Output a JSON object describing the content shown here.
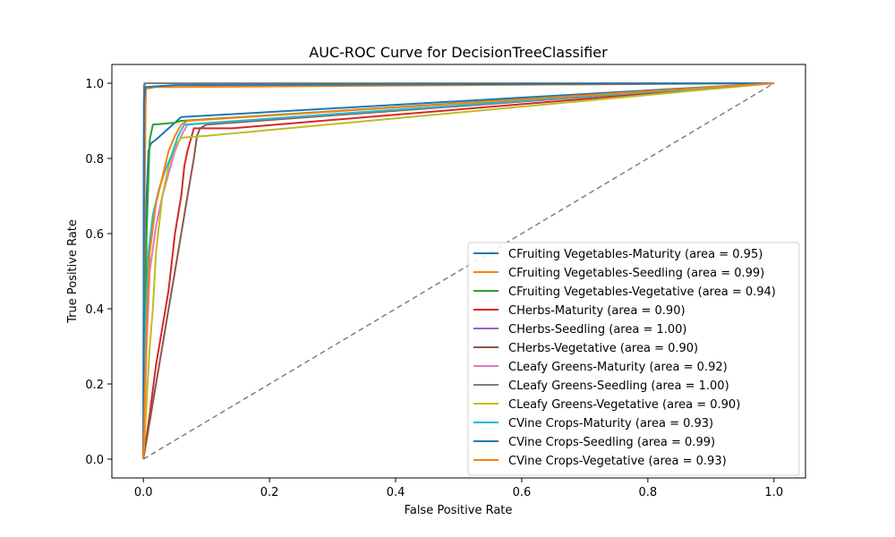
{
  "chart_data": {
    "type": "line",
    "title": "AUC-ROC Curve for DecisionTreeClassifier",
    "xlabel": "False Positive Rate",
    "ylabel": "True Positive Rate",
    "xlim": [
      -0.05,
      1.05
    ],
    "ylim": [
      -0.05,
      1.05
    ],
    "xticks": [
      "0.0",
      "0.2",
      "0.4",
      "0.6",
      "0.8",
      "1.0"
    ],
    "yticks": [
      "0.0",
      "0.2",
      "0.4",
      "0.6",
      "0.8",
      "1.0"
    ],
    "grid": false,
    "legend_position": "lower-right",
    "diagonal": {
      "color": "#808080",
      "x": [
        0,
        1
      ],
      "y": [
        0,
        1
      ]
    },
    "series": [
      {
        "name": "CFruiting Vegetables-Maturity (area = 0.95)",
        "color": "#1f77b4",
        "x": [
          0,
          0.005,
          0.008,
          0.012,
          0.02,
          0.04,
          0.06,
          1.0
        ],
        "y": [
          0,
          0.7,
          0.82,
          0.84,
          0.85,
          0.88,
          0.91,
          1.0
        ]
      },
      {
        "name": "CFruiting Vegetables-Seedling (area = 0.99)",
        "color": "#ff7f0e",
        "x": [
          0,
          0.002,
          0.004,
          0.02,
          0.05,
          1.0
        ],
        "y": [
          0,
          0.7,
          0.985,
          0.99,
          0.99,
          1.0
        ]
      },
      {
        "name": "CFruiting Vegetables-Vegetative (area = 0.94)",
        "color": "#2ca02c",
        "x": [
          0,
          0.005,
          0.01,
          0.015,
          0.05,
          0.06,
          1.0
        ],
        "y": [
          0,
          0.6,
          0.85,
          0.89,
          0.895,
          0.9,
          1.0
        ]
      },
      {
        "name": "CHerbs-Maturity (area = 0.90)",
        "color": "#d62728",
        "x": [
          0,
          0.01,
          0.02,
          0.03,
          0.04,
          0.05,
          0.06,
          0.065,
          0.07,
          0.08,
          0.14,
          1.0
        ],
        "y": [
          0,
          0.12,
          0.25,
          0.35,
          0.45,
          0.6,
          0.7,
          0.78,
          0.82,
          0.88,
          0.88,
          1.0
        ]
      },
      {
        "name": "CHerbs-Seedling (area = 1.00)",
        "color": "#9467bd",
        "x": [
          0,
          0.001,
          0.003,
          1.0
        ],
        "y": [
          0,
          0.99,
          1.0,
          1.0
        ]
      },
      {
        "name": "CHerbs-Vegetative (area = 0.90)",
        "color": "#8c564b",
        "x": [
          0,
          0.01,
          0.02,
          0.03,
          0.04,
          0.05,
          0.06,
          0.07,
          0.08,
          0.085,
          0.09,
          0.1,
          1.0
        ],
        "y": [
          0,
          0.1,
          0.2,
          0.3,
          0.4,
          0.5,
          0.6,
          0.7,
          0.8,
          0.86,
          0.88,
          0.89,
          1.0
        ]
      },
      {
        "name": "CLeafy Greens-Maturity (area = 0.92)",
        "color": "#e377c2",
        "x": [
          0,
          0.005,
          0.01,
          0.02,
          0.03,
          0.04,
          0.05,
          0.06,
          0.07,
          1.0
        ],
        "y": [
          0,
          0.3,
          0.5,
          0.62,
          0.7,
          0.76,
          0.82,
          0.86,
          0.89,
          1.0
        ]
      },
      {
        "name": "CLeafy Greens-Seedling (area = 1.00)",
        "color": "#7f7f7f",
        "x": [
          0,
          0.001,
          0.002,
          1.0
        ],
        "y": [
          0,
          0.995,
          1.0,
          1.0
        ]
      },
      {
        "name": "CLeafy Greens-Vegetative (area = 0.90)",
        "color": "#bcbd22",
        "x": [
          0,
          0.01,
          0.015,
          0.02,
          0.03,
          0.04,
          0.05,
          0.06,
          0.1,
          1.0
        ],
        "y": [
          0,
          0.3,
          0.4,
          0.55,
          0.7,
          0.78,
          0.83,
          0.855,
          0.86,
          1.0
        ]
      },
      {
        "name": "CVine Crops-Maturity (area = 0.93)",
        "color": "#17becf",
        "x": [
          0,
          0.004,
          0.008,
          0.015,
          0.025,
          0.035,
          0.045,
          0.055,
          0.065,
          1.0
        ],
        "y": [
          0,
          0.4,
          0.55,
          0.65,
          0.72,
          0.77,
          0.81,
          0.86,
          0.89,
          1.0
        ]
      },
      {
        "name": "CVine Crops-Seedling (area = 0.99)",
        "color": "#1f77b4",
        "x": [
          0,
          0.001,
          0.003,
          0.05,
          1.0
        ],
        "y": [
          0,
          0.95,
          0.99,
          0.995,
          1.0
        ]
      },
      {
        "name": "CVine Crops-Vegetative (area = 0.93)",
        "color": "#ff7f0e",
        "x": [
          0,
          0.005,
          0.01,
          0.02,
          0.03,
          0.04,
          0.05,
          0.06,
          0.07,
          1.0
        ],
        "y": [
          0,
          0.35,
          0.55,
          0.68,
          0.75,
          0.82,
          0.86,
          0.89,
          0.9,
          1.0
        ]
      }
    ]
  }
}
